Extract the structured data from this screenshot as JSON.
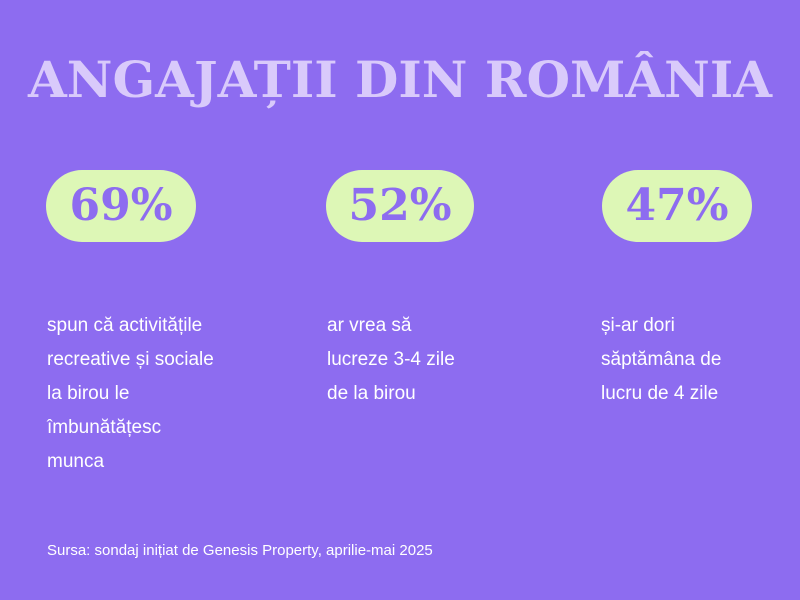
{
  "title": "ANGAJAȚII DIN ROMÂNIA",
  "stats": [
    {
      "value": "69%",
      "description": "spun că activitățile\nrecreative și sociale\nla birou le\nîmbunătățesc\nmunca"
    },
    {
      "value": "52%",
      "description": "ar vrea să\nlucreze 3-4 zile\nde la birou"
    },
    {
      "value": "47%",
      "description": "și-ar dori\nsăptămâna de\nlucru de 4 zile"
    }
  ],
  "source": "Sursa: sondaj inițiat de Genesis Property, aprilie-mai 2025",
  "colors": {
    "background": "#8d6cf0",
    "title": "#d9cafb",
    "pill": "#ddf7b6",
    "pill_text": "#8d6cf0",
    "body_text": "#ffffff"
  }
}
